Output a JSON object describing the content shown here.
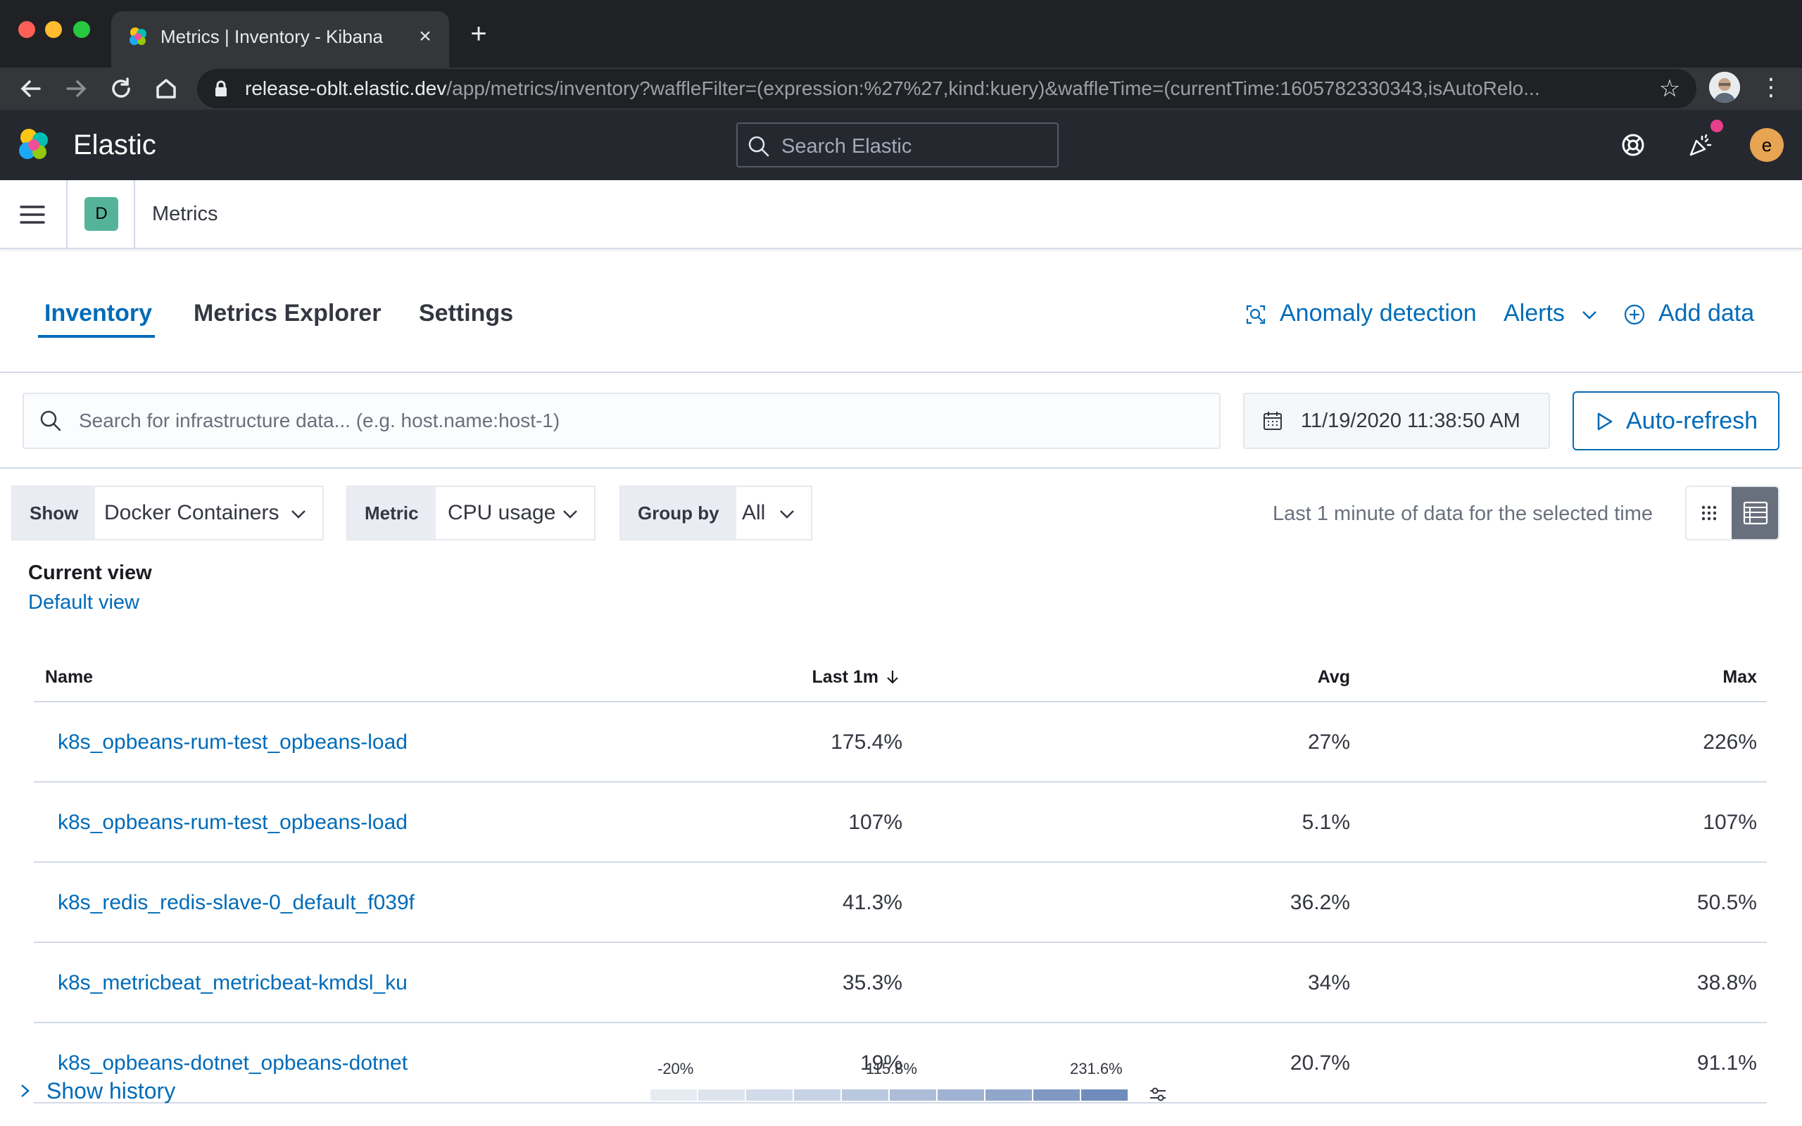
{
  "browser": {
    "tab_title": "Metrics | Inventory - Kibana",
    "url_host": "release-oblt.elastic.dev",
    "url_path": "/app/metrics/inventory?waffleFilter=(expression:%27%27,kind:kuery)&waffleTime=(currentTime:1605782330343,isAutoRelo..."
  },
  "header": {
    "brand": "Elastic",
    "search_placeholder": "Search Elastic",
    "user_initial": "e"
  },
  "subheader": {
    "space_initial": "D",
    "app_title": "Metrics"
  },
  "tabs": [
    {
      "label": "Inventory",
      "active": true
    },
    {
      "label": "Metrics Explorer",
      "active": false
    },
    {
      "label": "Settings",
      "active": false
    }
  ],
  "actions": {
    "anomaly": "Anomaly detection",
    "alerts": "Alerts",
    "add_data": "Add data"
  },
  "filters": {
    "search_placeholder": "Search for infrastructure data... (e.g. host.name:host-1)",
    "date": "11/19/2020 11:38:50 AM",
    "autorefresh": "Auto-refresh"
  },
  "controls": {
    "show_label": "Show",
    "show_value": "Docker Containers",
    "metric_label": "Metric",
    "metric_value": "CPU usage",
    "group_label": "Group by",
    "group_value": "All",
    "time_note": "Last 1 minute of data for the selected time"
  },
  "current_view": {
    "label": "Current view",
    "name": "Default view"
  },
  "table": {
    "headers": {
      "name": "Name",
      "last": "Last 1m",
      "avg": "Avg",
      "max": "Max"
    },
    "rows": [
      {
        "name": "k8s_opbeans-rum-test_opbeans-load",
        "last": "175.4%",
        "avg": "27%",
        "max": "226%"
      },
      {
        "name": "k8s_opbeans-rum-test_opbeans-load",
        "last": "107%",
        "avg": "5.1%",
        "max": "107%"
      },
      {
        "name": "k8s_redis_redis-slave-0_default_f039f",
        "last": "41.3%",
        "avg": "36.2%",
        "max": "50.5%"
      },
      {
        "name": "k8s_metricbeat_metricbeat-kmdsl_ku",
        "last": "35.3%",
        "avg": "34%",
        "max": "38.8%"
      },
      {
        "name": "k8s_opbeans-dotnet_opbeans-dotnet",
        "last": "19%",
        "avg": "20.7%",
        "max": "91.1%"
      }
    ]
  },
  "footer": {
    "show_history": "Show history",
    "legend_ticks": [
      "-20%",
      "115.8%",
      "231.6%"
    ],
    "legend_colors": [
      "#e6ebf2",
      "#dde4ee",
      "#d2dbe9",
      "#c7d2e4",
      "#bac8df",
      "#adbdd8",
      "#9fb2d2",
      "#90a6cb",
      "#8099c4",
      "#6f8cbc"
    ]
  },
  "colors": {
    "accent": "#006bb8",
    "header_bg": "#25282f"
  }
}
